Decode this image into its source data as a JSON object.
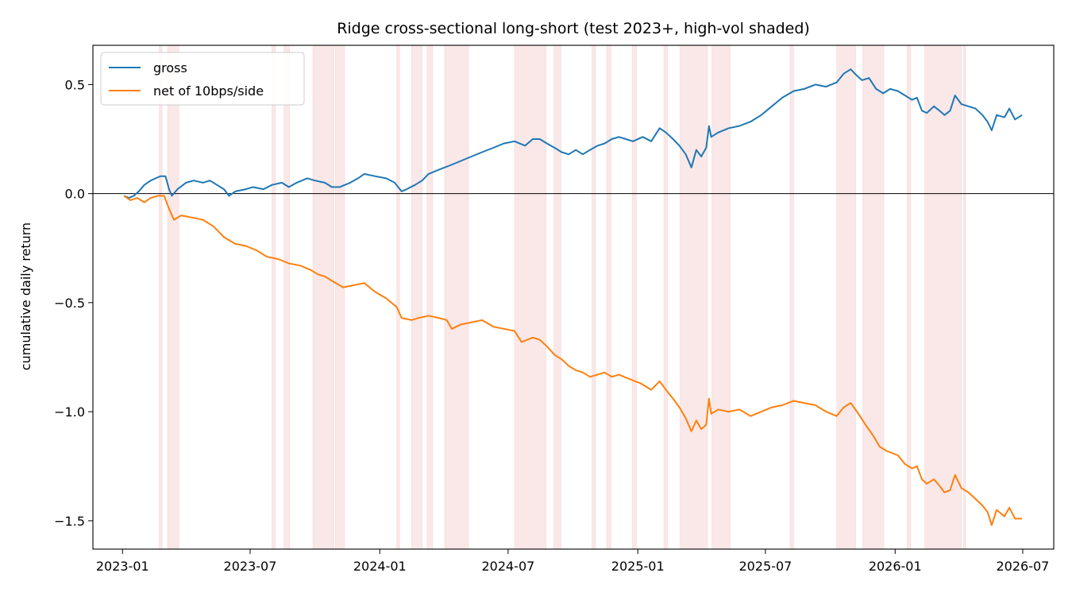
{
  "chart_data": {
    "type": "line",
    "title": "Ridge cross-sectional long-short (test 2023+, high-vol shaded)",
    "xlabel": "",
    "ylabel": "cumulative daily return",
    "x_ticks": [
      "2023-01",
      "2023-07",
      "2024-01",
      "2024-07",
      "2025-01",
      "2025-07",
      "2026-01",
      "2026-07"
    ],
    "y_ticks": [
      0.5,
      0.0,
      -0.5,
      -1.0,
      -1.5
    ],
    "y_tick_labels": [
      "0.5",
      "0.0",
      "−0.5",
      "−1.0",
      "−1.5"
    ],
    "xlim": [
      "2022-11-20",
      "2026-08-14"
    ],
    "ylim": [
      -1.63,
      0.68
    ],
    "grid": false,
    "legend_position": "upper left",
    "zero_line": true,
    "colors": {
      "gross": "#1f77b4",
      "net": "#ff7f0e",
      "shade": "#f4cccc"
    },
    "series": [
      {
        "name": "gross",
        "color": "#1f77b4",
        "points": [
          [
            "2023-01-03",
            -0.01
          ],
          [
            "2023-01-10",
            -0.02
          ],
          [
            "2023-01-17",
            -0.01
          ],
          [
            "2023-01-24",
            0.01
          ],
          [
            "2023-02-01",
            0.04
          ],
          [
            "2023-02-10",
            0.06
          ],
          [
            "2023-02-17",
            0.07
          ],
          [
            "2023-02-24",
            0.08
          ],
          [
            "2023-03-03",
            0.08
          ],
          [
            "2023-03-08",
            0.02
          ],
          [
            "2023-03-12",
            -0.01
          ],
          [
            "2023-03-20",
            0.02
          ],
          [
            "2023-04-01",
            0.05
          ],
          [
            "2023-04-12",
            0.06
          ],
          [
            "2023-04-25",
            0.05
          ],
          [
            "2023-05-05",
            0.06
          ],
          [
            "2023-05-15",
            0.04
          ],
          [
            "2023-05-25",
            0.02
          ],
          [
            "2023-06-01",
            -0.01
          ],
          [
            "2023-06-10",
            0.01
          ],
          [
            "2023-06-25",
            0.02
          ],
          [
            "2023-07-05",
            0.03
          ],
          [
            "2023-07-20",
            0.02
          ],
          [
            "2023-08-01",
            0.04
          ],
          [
            "2023-08-15",
            0.05
          ],
          [
            "2023-08-25",
            0.03
          ],
          [
            "2023-09-05",
            0.05
          ],
          [
            "2023-09-20",
            0.07
          ],
          [
            "2023-10-01",
            0.06
          ],
          [
            "2023-10-15",
            0.05
          ],
          [
            "2023-10-25",
            0.03
          ],
          [
            "2023-11-05",
            0.03
          ],
          [
            "2023-11-20",
            0.05
          ],
          [
            "2023-12-01",
            0.07
          ],
          [
            "2023-12-10",
            0.09
          ],
          [
            "2023-12-25",
            0.08
          ],
          [
            "2024-01-10",
            0.07
          ],
          [
            "2024-01-22",
            0.05
          ],
          [
            "2024-02-01",
            0.01
          ],
          [
            "2024-02-08",
            0.02
          ],
          [
            "2024-02-20",
            0.04
          ],
          [
            "2024-03-01",
            0.06
          ],
          [
            "2024-03-10",
            0.09
          ],
          [
            "2024-03-25",
            0.11
          ],
          [
            "2024-04-10",
            0.13
          ],
          [
            "2024-04-25",
            0.15
          ],
          [
            "2024-05-10",
            0.17
          ],
          [
            "2024-05-25",
            0.19
          ],
          [
            "2024-06-10",
            0.21
          ],
          [
            "2024-06-25",
            0.23
          ],
          [
            "2024-07-10",
            0.24
          ],
          [
            "2024-07-25",
            0.22
          ],
          [
            "2024-08-05",
            0.25
          ],
          [
            "2024-08-15",
            0.25
          ],
          [
            "2024-08-25",
            0.23
          ],
          [
            "2024-09-05",
            0.21
          ],
          [
            "2024-09-15",
            0.19
          ],
          [
            "2024-09-25",
            0.18
          ],
          [
            "2024-10-05",
            0.2
          ],
          [
            "2024-10-15",
            0.18
          ],
          [
            "2024-10-25",
            0.2
          ],
          [
            "2024-11-05",
            0.22
          ],
          [
            "2024-11-15",
            0.23
          ],
          [
            "2024-11-25",
            0.25
          ],
          [
            "2024-12-05",
            0.26
          ],
          [
            "2024-12-15",
            0.25
          ],
          [
            "2024-12-25",
            0.24
          ],
          [
            "2025-01-08",
            0.26
          ],
          [
            "2025-01-20",
            0.24
          ],
          [
            "2025-02-01",
            0.3
          ],
          [
            "2025-02-10",
            0.28
          ],
          [
            "2025-02-20",
            0.25
          ],
          [
            "2025-03-01",
            0.22
          ],
          [
            "2025-03-10",
            0.18
          ],
          [
            "2025-03-18",
            0.12
          ],
          [
            "2025-03-25",
            0.2
          ],
          [
            "2025-04-01",
            0.17
          ],
          [
            "2025-04-08",
            0.21
          ],
          [
            "2025-04-12",
            0.31
          ],
          [
            "2025-04-15",
            0.26
          ],
          [
            "2025-04-25",
            0.28
          ],
          [
            "2025-05-10",
            0.3
          ],
          [
            "2025-05-25",
            0.31
          ],
          [
            "2025-06-10",
            0.33
          ],
          [
            "2025-06-25",
            0.36
          ],
          [
            "2025-07-10",
            0.4
          ],
          [
            "2025-07-25",
            0.44
          ],
          [
            "2025-08-10",
            0.47
          ],
          [
            "2025-08-25",
            0.48
          ],
          [
            "2025-09-10",
            0.5
          ],
          [
            "2025-09-25",
            0.49
          ],
          [
            "2025-10-10",
            0.51
          ],
          [
            "2025-10-20",
            0.55
          ],
          [
            "2025-10-30",
            0.57
          ],
          [
            "2025-11-08",
            0.54
          ],
          [
            "2025-11-15",
            0.52
          ],
          [
            "2025-11-25",
            0.53
          ],
          [
            "2025-12-05",
            0.48
          ],
          [
            "2025-12-15",
            0.46
          ],
          [
            "2025-12-25",
            0.48
          ],
          [
            "2026-01-05",
            0.47
          ],
          [
            "2026-01-15",
            0.45
          ],
          [
            "2026-01-25",
            0.43
          ],
          [
            "2026-02-01",
            0.44
          ],
          [
            "2026-02-08",
            0.38
          ],
          [
            "2026-02-15",
            0.37
          ],
          [
            "2026-02-25",
            0.4
          ],
          [
            "2026-03-05",
            0.38
          ],
          [
            "2026-03-12",
            0.36
          ],
          [
            "2026-03-20",
            0.38
          ],
          [
            "2026-03-27",
            0.45
          ],
          [
            "2026-04-05",
            0.41
          ],
          [
            "2026-04-15",
            0.4
          ],
          [
            "2026-04-25",
            0.39
          ],
          [
            "2026-05-05",
            0.36
          ],
          [
            "2026-05-12",
            0.33
          ],
          [
            "2026-05-18",
            0.29
          ],
          [
            "2026-05-25",
            0.36
          ],
          [
            "2026-06-05",
            0.35
          ],
          [
            "2026-06-12",
            0.39
          ],
          [
            "2026-06-20",
            0.34
          ],
          [
            "2026-06-30",
            0.36
          ]
        ]
      },
      {
        "name": "net of 10bps/side",
        "color": "#ff7f0e",
        "points": [
          [
            "2023-01-03",
            -0.01
          ],
          [
            "2023-01-12",
            -0.03
          ],
          [
            "2023-01-22",
            -0.02
          ],
          [
            "2023-02-01",
            -0.04
          ],
          [
            "2023-02-10",
            -0.02
          ],
          [
            "2023-02-20",
            -0.01
          ],
          [
            "2023-03-01",
            -0.01
          ],
          [
            "2023-03-08",
            -0.07
          ],
          [
            "2023-03-15",
            -0.12
          ],
          [
            "2023-03-25",
            -0.1
          ],
          [
            "2023-04-10",
            -0.11
          ],
          [
            "2023-04-25",
            -0.12
          ],
          [
            "2023-05-10",
            -0.15
          ],
          [
            "2023-05-25",
            -0.2
          ],
          [
            "2023-06-10",
            -0.23
          ],
          [
            "2023-06-25",
            -0.24
          ],
          [
            "2023-07-10",
            -0.26
          ],
          [
            "2023-07-25",
            -0.29
          ],
          [
            "2023-08-10",
            -0.3
          ],
          [
            "2023-08-25",
            -0.32
          ],
          [
            "2023-09-10",
            -0.33
          ],
          [
            "2023-09-25",
            -0.35
          ],
          [
            "2023-10-05",
            -0.37
          ],
          [
            "2023-10-15",
            -0.38
          ],
          [
            "2023-10-25",
            -0.4
          ],
          [
            "2023-11-10",
            -0.43
          ],
          [
            "2023-11-25",
            -0.42
          ],
          [
            "2023-12-10",
            -0.41
          ],
          [
            "2023-12-25",
            -0.45
          ],
          [
            "2024-01-10",
            -0.48
          ],
          [
            "2024-01-25",
            -0.52
          ],
          [
            "2024-02-01",
            -0.57
          ],
          [
            "2024-02-15",
            -0.58
          ],
          [
            "2024-02-25",
            -0.57
          ],
          [
            "2024-03-10",
            -0.56
          ],
          [
            "2024-03-25",
            -0.57
          ],
          [
            "2024-04-05",
            -0.58
          ],
          [
            "2024-04-12",
            -0.62
          ],
          [
            "2024-04-25",
            -0.6
          ],
          [
            "2024-05-10",
            -0.59
          ],
          [
            "2024-05-25",
            -0.58
          ],
          [
            "2024-06-10",
            -0.61
          ],
          [
            "2024-06-25",
            -0.62
          ],
          [
            "2024-07-10",
            -0.63
          ],
          [
            "2024-07-20",
            -0.68
          ],
          [
            "2024-08-05",
            -0.66
          ],
          [
            "2024-08-15",
            -0.67
          ],
          [
            "2024-08-25",
            -0.7
          ],
          [
            "2024-09-05",
            -0.74
          ],
          [
            "2024-09-15",
            -0.76
          ],
          [
            "2024-09-25",
            -0.79
          ],
          [
            "2024-10-05",
            -0.81
          ],
          [
            "2024-10-15",
            -0.82
          ],
          [
            "2024-10-25",
            -0.84
          ],
          [
            "2024-11-05",
            -0.83
          ],
          [
            "2024-11-15",
            -0.82
          ],
          [
            "2024-11-25",
            -0.84
          ],
          [
            "2024-12-05",
            -0.83
          ],
          [
            "2024-12-20",
            -0.85
          ],
          [
            "2025-01-05",
            -0.87
          ],
          [
            "2025-01-20",
            -0.9
          ],
          [
            "2025-02-01",
            -0.86
          ],
          [
            "2025-02-10",
            -0.9
          ],
          [
            "2025-02-20",
            -0.94
          ],
          [
            "2025-03-01",
            -0.98
          ],
          [
            "2025-03-10",
            -1.03
          ],
          [
            "2025-03-18",
            -1.09
          ],
          [
            "2025-03-25",
            -1.04
          ],
          [
            "2025-04-01",
            -1.08
          ],
          [
            "2025-04-08",
            -1.06
          ],
          [
            "2025-04-12",
            -0.94
          ],
          [
            "2025-04-15",
            -1.01
          ],
          [
            "2025-04-25",
            -0.99
          ],
          [
            "2025-05-10",
            -1.0
          ],
          [
            "2025-05-25",
            -0.99
          ],
          [
            "2025-06-10",
            -1.02
          ],
          [
            "2025-06-25",
            -1.0
          ],
          [
            "2025-07-10",
            -0.98
          ],
          [
            "2025-07-25",
            -0.97
          ],
          [
            "2025-08-10",
            -0.95
          ],
          [
            "2025-08-25",
            -0.96
          ],
          [
            "2025-09-10",
            -0.97
          ],
          [
            "2025-09-25",
            -1.0
          ],
          [
            "2025-10-10",
            -1.02
          ],
          [
            "2025-10-20",
            -0.98
          ],
          [
            "2025-10-30",
            -0.96
          ],
          [
            "2025-11-08",
            -1.0
          ],
          [
            "2025-11-20",
            -1.06
          ],
          [
            "2025-12-01",
            -1.11
          ],
          [
            "2025-12-10",
            -1.16
          ],
          [
            "2025-12-20",
            -1.18
          ],
          [
            "2026-01-05",
            -1.2
          ],
          [
            "2026-01-15",
            -1.24
          ],
          [
            "2026-01-25",
            -1.26
          ],
          [
            "2026-02-01",
            -1.25
          ],
          [
            "2026-02-08",
            -1.31
          ],
          [
            "2026-02-15",
            -1.33
          ],
          [
            "2026-02-25",
            -1.31
          ],
          [
            "2026-03-05",
            -1.34
          ],
          [
            "2026-03-12",
            -1.37
          ],
          [
            "2026-03-20",
            -1.36
          ],
          [
            "2026-03-27",
            -1.29
          ],
          [
            "2026-04-05",
            -1.35
          ],
          [
            "2026-04-15",
            -1.37
          ],
          [
            "2026-04-25",
            -1.4
          ],
          [
            "2026-05-05",
            -1.43
          ],
          [
            "2026-05-12",
            -1.46
          ],
          [
            "2026-05-18",
            -1.52
          ],
          [
            "2026-05-25",
            -1.45
          ],
          [
            "2026-06-05",
            -1.48
          ],
          [
            "2026-06-12",
            -1.44
          ],
          [
            "2026-06-20",
            -1.49
          ],
          [
            "2026-06-30",
            -1.49
          ]
        ]
      }
    ],
    "high_vol_periods": [
      [
        "2023-02-22",
        "2023-02-26"
      ],
      [
        "2023-03-06",
        "2023-03-22"
      ],
      [
        "2023-08-01",
        "2023-08-06"
      ],
      [
        "2023-08-18",
        "2023-08-26"
      ],
      [
        "2023-09-28",
        "2023-10-28"
      ],
      [
        "2023-10-30",
        "2023-11-12"
      ],
      [
        "2024-01-25",
        "2024-01-29"
      ],
      [
        "2024-02-15",
        "2024-03-01"
      ],
      [
        "2024-03-08",
        "2024-03-16"
      ],
      [
        "2024-04-02",
        "2024-05-06"
      ],
      [
        "2024-07-10",
        "2024-08-24"
      ],
      [
        "2024-09-04",
        "2024-09-14"
      ],
      [
        "2024-10-28",
        "2024-11-02"
      ],
      [
        "2024-11-18",
        "2024-11-24"
      ],
      [
        "2024-12-24",
        "2024-12-30"
      ],
      [
        "2025-02-07",
        "2025-02-12"
      ],
      [
        "2025-03-02",
        "2025-04-10"
      ],
      [
        "2025-04-16",
        "2025-05-12"
      ],
      [
        "2025-08-05",
        "2025-08-10"
      ],
      [
        "2025-10-10",
        "2025-11-06"
      ],
      [
        "2025-11-16",
        "2025-12-16"
      ],
      [
        "2026-01-18",
        "2026-01-23"
      ],
      [
        "2026-02-12",
        "2026-04-05"
      ],
      [
        "2026-04-08",
        "2026-04-11"
      ]
    ]
  }
}
